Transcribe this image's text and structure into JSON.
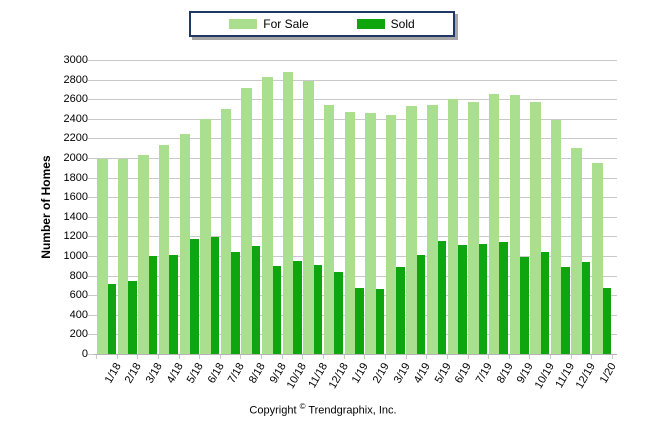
{
  "chart_data": {
    "type": "bar",
    "title": "",
    "categories": [
      "1/18",
      "2/18",
      "3/18",
      "4/18",
      "5/18",
      "6/18",
      "7/18",
      "8/18",
      "9/18",
      "10/18",
      "11/18",
      "12/18",
      "1/19",
      "2/19",
      "3/19",
      "4/19",
      "5/19",
      "6/19",
      "7/19",
      "8/19",
      "9/19",
      "10/19",
      "11/19",
      "12/19",
      "1/20"
    ],
    "series": [
      {
        "name": "For Sale",
        "color": "#A9DF8F",
        "values": [
          1990,
          1990,
          2030,
          2130,
          2250,
          2400,
          2500,
          2710,
          2830,
          2880,
          2790,
          2540,
          2470,
          2460,
          2440,
          2530,
          2540,
          2600,
          2570,
          2650,
          2640,
          2575,
          2390,
          2100,
          1950
        ]
      },
      {
        "name": "Sold",
        "color": "#0FA50F",
        "values": [
          715,
          740,
          1000,
          1010,
          1175,
          1195,
          1045,
          1105,
          900,
          945,
          910,
          840,
          670,
          660,
          890,
          1010,
          1155,
          1110,
          1120,
          1140,
          990,
          1040,
          890,
          940,
          670
        ]
      }
    ],
    "xlabel": "",
    "ylabel": "Number of Homes",
    "ylim": [
      0,
      3000
    ],
    "ytick_step": 200,
    "grid": true,
    "legend_position": "top-center"
  },
  "colors": {
    "for_sale": "#A9DF8F",
    "sold": "#0FA50F",
    "gridline": "#C9C9C9",
    "legend_border": "#1F3864",
    "legend_shadow": "#A6A6A6"
  },
  "footer": {
    "prefix": "Copyright ",
    "symbol": "©",
    "suffix": " Trendgraphix, Inc."
  }
}
